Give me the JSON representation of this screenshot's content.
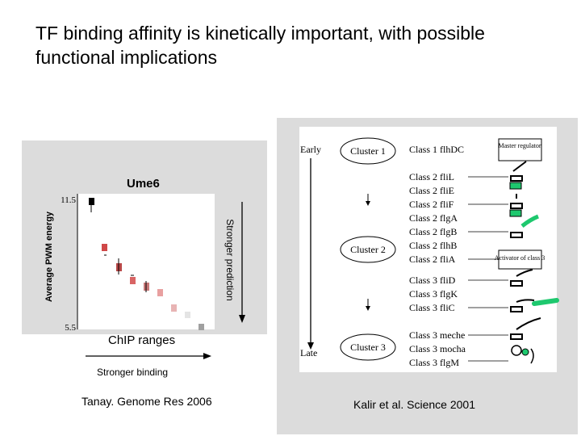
{
  "slide": {
    "title": "TF binding affinity is kinetically important, with possible functional implications"
  },
  "left_figure": {
    "panel_title": "Ume6",
    "y_axis_label": "Average PWM energy",
    "y_ticks": [
      "11.5",
      "5.5"
    ],
    "right_label": "Stronger prediction",
    "x_label": "ChIP ranges",
    "arrow_label": "Stronger binding",
    "citation": "Tanay. Genome Res 2006"
  },
  "right_figure": {
    "early_label": "Early",
    "late_label": "Late",
    "clusters": [
      "Cluster 1",
      "Cluster 2",
      "Cluster 3"
    ],
    "genes": [
      "Class 1 flhDC",
      "Class 2 fliL",
      "Class 2 fliE",
      "Class 2 fliF",
      "Class 2 flgA",
      "Class 2 flgB",
      "Class 2 flhB",
      "Class 2 fliA",
      "Class 3 fliD",
      "Class 3 flgK",
      "Class 3 fliC",
      "Class 3 meche",
      "Class 3 mocha",
      "Class 3 flgM"
    ],
    "box_master": "Master regulator",
    "box_activator": "Activator of class 3",
    "citation": "Kalir et al. Science 2001"
  },
  "colors": {
    "panel_bg": "#dcdcdc",
    "green": "#1ec86e",
    "marker_dark": "#000000",
    "marker_red": "#c83c3c"
  }
}
